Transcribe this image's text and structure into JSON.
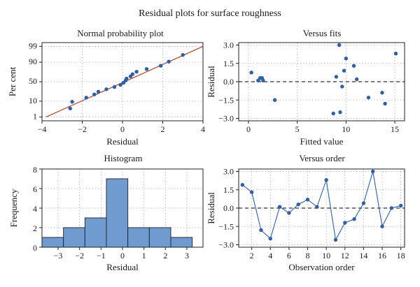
{
  "figure_title": "Residual plots for surface roughness",
  "chart_data": [
    {
      "type": "scatter",
      "title": "Normal probability plot",
      "xlabel": "Residual",
      "ylabel": "Per cent",
      "xlim": [
        -4,
        4
      ],
      "x_ticks": [
        "−4",
        "−2",
        "0",
        "2",
        "4"
      ],
      "x_tick_values": [
        -4,
        -2,
        0,
        2,
        4
      ],
      "y_scale": "normal-probability",
      "y_ticks": [
        "1",
        "10",
        "50",
        "90",
        "99"
      ],
      "y_tick_values": [
        1,
        10,
        50,
        90,
        99
      ],
      "grid": true,
      "fit_line": {
        "from": [
          -3.8,
          1
        ],
        "to": [
          4,
          99
        ]
      },
      "points": [
        {
          "x": -2.6,
          "y": 3.9
        },
        {
          "x": -2.5,
          "y": 9.3
        },
        {
          "x": -1.8,
          "y": 14.7
        },
        {
          "x": -1.4,
          "y": 20.1
        },
        {
          "x": -1.2,
          "y": 25.5
        },
        {
          "x": -0.8,
          "y": 30.9
        },
        {
          "x": -0.4,
          "y": 36.3
        },
        {
          "x": -0.1,
          "y": 41.7
        },
        {
          "x": 0.05,
          "y": 47.1
        },
        {
          "x": 0.15,
          "y": 52.9
        },
        {
          "x": 0.2,
          "y": 58.3
        },
        {
          "x": 0.4,
          "y": 63.7
        },
        {
          "x": 0.5,
          "y": 69.1
        },
        {
          "x": 0.7,
          "y": 74.5
        },
        {
          "x": 1.2,
          "y": 79.9
        },
        {
          "x": 1.9,
          "y": 85.3
        },
        {
          "x": 2.3,
          "y": 90.7
        },
        {
          "x": 3.0,
          "y": 96.1
        }
      ]
    },
    {
      "type": "scatter",
      "title": "Versus fits",
      "xlabel": "Fitted value",
      "ylabel": "Residual",
      "xlim": [
        -1,
        16
      ],
      "ylim": [
        -3.2,
        3.2
      ],
      "x_ticks": [
        "0",
        "5",
        "10",
        "15"
      ],
      "x_tick_values": [
        0,
        5,
        10,
        15
      ],
      "y_ticks": [
        "−3.0",
        "−1.5",
        "0.0",
        "1.5",
        "3.0"
      ],
      "y_tick_values": [
        -3,
        -1.5,
        0,
        1.5,
        3
      ],
      "grid": true,
      "reference_line_y": 0,
      "points": [
        {
          "x": 0.3,
          "y": 0.75
        },
        {
          "x": 1.0,
          "y": 0.1
        },
        {
          "x": 1.2,
          "y": 0.3
        },
        {
          "x": 1.4,
          "y": 0.3
        },
        {
          "x": 1.5,
          "y": 0.1
        },
        {
          "x": 2.7,
          "y": -1.5
        },
        {
          "x": 8.7,
          "y": -2.6
        },
        {
          "x": 9.0,
          "y": 0.4
        },
        {
          "x": 9.3,
          "y": 3.0
        },
        {
          "x": 9.4,
          "y": -2.5
        },
        {
          "x": 9.6,
          "y": -0.4
        },
        {
          "x": 9.8,
          "y": 0.9
        },
        {
          "x": 10.0,
          "y": 1.9
        },
        {
          "x": 10.8,
          "y": 1.3
        },
        {
          "x": 11.1,
          "y": 0.2
        },
        {
          "x": 12.3,
          "y": -1.3
        },
        {
          "x": 13.7,
          "y": -0.9
        },
        {
          "x": 14.0,
          "y": -1.8
        },
        {
          "x": 15.1,
          "y": 2.3
        }
      ]
    },
    {
      "type": "bar",
      "title": "Histogram",
      "xlabel": "Residual",
      "ylabel": "Frequency",
      "xlim": [
        -3.75,
        3.75
      ],
      "ylim": [
        0,
        8
      ],
      "x_ticks": [
        "−3",
        "−2",
        "−1",
        "0",
        "1",
        "2",
        "3"
      ],
      "x_tick_values": [
        -3,
        -2,
        -1,
        0,
        1,
        2,
        3
      ],
      "y_ticks": [
        "0",
        "2",
        "4",
        "6",
        "8"
      ],
      "y_tick_values": [
        0,
        2,
        4,
        6,
        8
      ],
      "grid": true,
      "bin_edges": [
        -3.75,
        -2.75,
        -1.75,
        -0.75,
        0.25,
        1.25,
        2.25,
        3.25
      ],
      "frequencies": [
        1,
        2,
        3,
        7,
        2,
        2,
        1
      ]
    },
    {
      "type": "line",
      "title": "Versus order",
      "xlabel": "Observation order",
      "ylabel": "Residual",
      "xlim": [
        0.6,
        18.4
      ],
      "ylim": [
        -3.2,
        3.2
      ],
      "x_ticks": [
        "2",
        "4",
        "6",
        "8",
        "10",
        "12",
        "14",
        "16",
        "18"
      ],
      "x_tick_values": [
        2,
        4,
        6,
        8,
        10,
        12,
        14,
        16,
        18
      ],
      "y_ticks": [
        "−3.0",
        "−1.5",
        "0.0",
        "1.5",
        "3.0"
      ],
      "y_tick_values": [
        -3,
        -1.5,
        0,
        1.5,
        3
      ],
      "grid": true,
      "reference_line_y": 0,
      "x": [
        1,
        2,
        3,
        4,
        5,
        6,
        7,
        8,
        9,
        10,
        11,
        12,
        13,
        14,
        15,
        16,
        17,
        18
      ],
      "values": [
        1.9,
        1.3,
        -1.8,
        -2.5,
        0.1,
        -0.4,
        0.3,
        0.7,
        0.1,
        2.3,
        -2.6,
        -1.2,
        -0.9,
        0.4,
        3.0,
        -1.5,
        0.0,
        0.2
      ]
    }
  ]
}
